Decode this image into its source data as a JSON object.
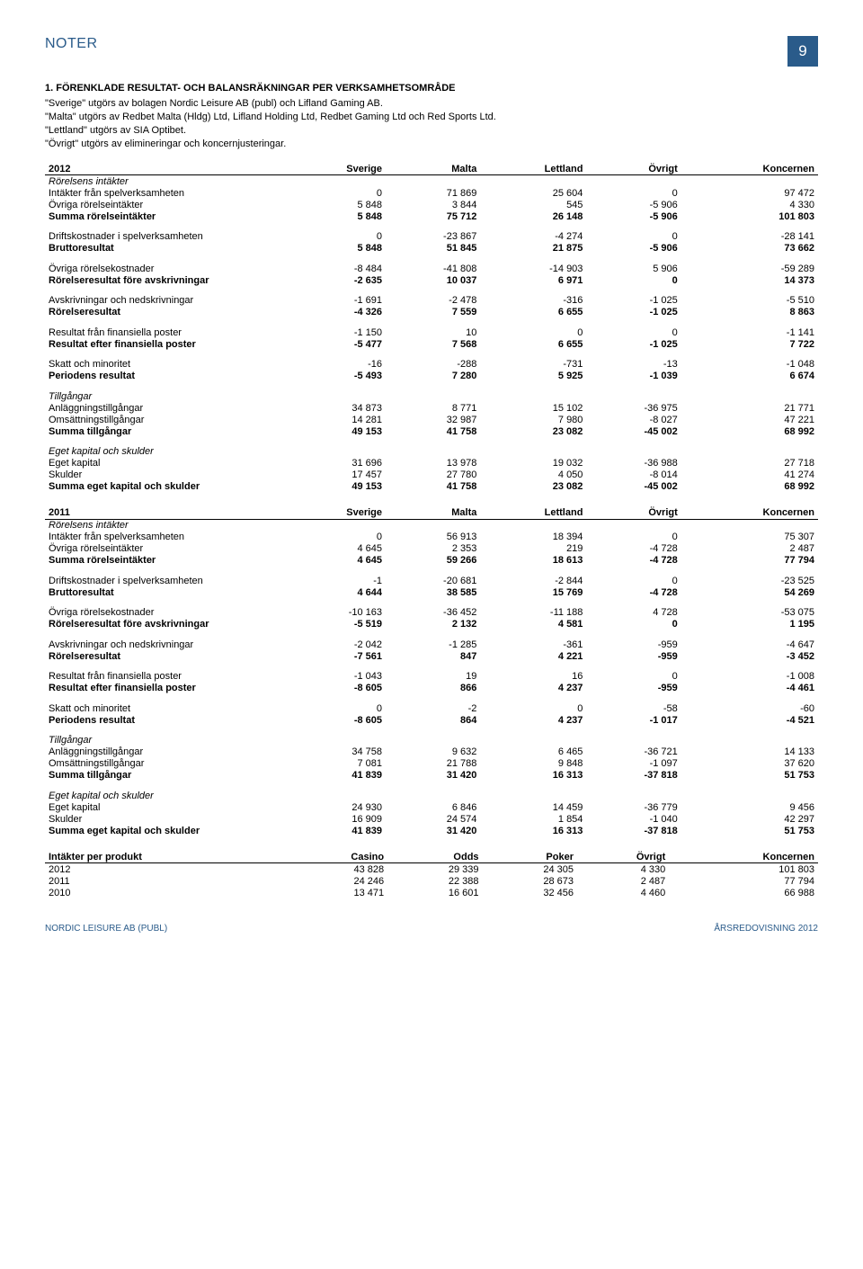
{
  "page": {
    "title": "NOTER",
    "number": "9",
    "footer_left": "NORDIC LEISURE AB (PUBL)",
    "footer_right": "ÅRSREDOVISNING 2012"
  },
  "note": {
    "heading": "1.    FÖRENKLADE RESULTAT- OCH BALANSRÄKNINGAR PER VERKSAMHETSOMRÅDE",
    "intro": "\"Sverige\" utgörs av bolagen Nordic Leisure AB (publ) och Lifland Gaming AB.\n\"Malta\" utgörs av Redbet Malta (Hldg) Ltd, Lifland Holding Ltd, Redbet Gaming Ltd och Red Sports Ltd.\n\"Lettland\" utgörs av SIA Optibet.\n\"Övrigt\" utgörs av elimineringar och koncernjusteringar."
  },
  "tables": [
    {
      "year": "2012",
      "columns": [
        "Sverige",
        "Malta",
        "Lettland",
        "Övrigt",
        "Koncernen"
      ],
      "rows": [
        {
          "label": "Rörelsens intäkter",
          "vals": [
            "",
            "",
            "",
            "",
            ""
          ],
          "italic": true
        },
        {
          "label": "Intäkter från spelverksamheten",
          "vals": [
            "0",
            "71 869",
            "25 604",
            "0",
            "97 472"
          ]
        },
        {
          "label": "Övriga rörelseintäkter",
          "vals": [
            "5 848",
            "3 844",
            "545",
            "-5 906",
            "4 330"
          ]
        },
        {
          "label": "Summa rörelseintäkter",
          "vals": [
            "5 848",
            "75 712",
            "26 148",
            "-5 906",
            "101 803"
          ],
          "bold": true
        },
        {
          "label": "Driftskostnader i spelverksamheten",
          "vals": [
            "0",
            "-23 867",
            "-4 274",
            "0",
            "-28 141"
          ],
          "gap": true
        },
        {
          "label": "Bruttoresultat",
          "vals": [
            "5 848",
            "51 845",
            "21 875",
            "-5 906",
            "73 662"
          ],
          "bold": true
        },
        {
          "label": "Övriga rörelsekostnader",
          "vals": [
            "-8 484",
            "-41 808",
            "-14 903",
            "5 906",
            "-59 289"
          ],
          "gap": true
        },
        {
          "label": "Rörelseresultat före avskrivningar",
          "vals": [
            "-2 635",
            "10 037",
            "6 971",
            "0",
            "14 373"
          ],
          "bold": true
        },
        {
          "label": "Avskrivningar och nedskrivningar",
          "vals": [
            "-1 691",
            "-2 478",
            "-316",
            "-1 025",
            "-5 510"
          ],
          "gap": true
        },
        {
          "label": "Rörelseresultat",
          "vals": [
            "-4 326",
            "7 559",
            "6 655",
            "-1 025",
            "8 863"
          ],
          "bold": true
        },
        {
          "label": "Resultat från finansiella poster",
          "vals": [
            "-1 150",
            "10",
            "0",
            "0",
            "-1 141"
          ],
          "gap": true
        },
        {
          "label": "Resultat efter finansiella poster",
          "vals": [
            "-5 477",
            "7 568",
            "6 655",
            "-1 025",
            "7 722"
          ],
          "bold": true
        },
        {
          "label": "Skatt och minoritet",
          "vals": [
            "-16",
            "-288",
            "-731",
            "-13",
            "-1 048"
          ],
          "gap": true
        },
        {
          "label": "Periodens resultat",
          "vals": [
            "-5 493",
            "7 280",
            "5 925",
            "-1 039",
            "6 674"
          ],
          "bold": true
        },
        {
          "label": "Tillgångar",
          "vals": [
            "",
            "",
            "",
            "",
            ""
          ],
          "italic": true,
          "gap": true
        },
        {
          "label": "Anläggningstillgångar",
          "vals": [
            "34 873",
            "8 771",
            "15 102",
            "-36 975",
            "21 771"
          ]
        },
        {
          "label": "Omsättningstillgångar",
          "vals": [
            "14 281",
            "32 987",
            "7 980",
            "-8 027",
            "47 221"
          ]
        },
        {
          "label": "Summa tillgångar",
          "vals": [
            "49 153",
            "41 758",
            "23 082",
            "-45 002",
            "68 992"
          ],
          "bold": true
        },
        {
          "label": "Eget kapital och skulder",
          "vals": [
            "",
            "",
            "",
            "",
            ""
          ],
          "italic": true,
          "gap": true
        },
        {
          "label": "Eget kapital",
          "vals": [
            "31 696",
            "13 978",
            "19 032",
            "-36 988",
            "27 718"
          ]
        },
        {
          "label": "Skulder",
          "vals": [
            "17 457",
            "27 780",
            "4 050",
            "-8 014",
            "41 274"
          ]
        },
        {
          "label": "Summa eget kapital och skulder",
          "vals": [
            "49 153",
            "41 758",
            "23 082",
            "-45 002",
            "68 992"
          ],
          "bold": true
        }
      ]
    },
    {
      "year": "2011",
      "columns": [
        "Sverige",
        "Malta",
        "Lettland",
        "Övrigt",
        "Koncernen"
      ],
      "rows": [
        {
          "label": "Rörelsens intäkter",
          "vals": [
            "",
            "",
            "",
            "",
            ""
          ],
          "italic": true
        },
        {
          "label": "Intäkter från spelverksamheten",
          "vals": [
            "0",
            "56 913",
            "18 394",
            "0",
            "75 307"
          ]
        },
        {
          "label": "Övriga rörelseintäkter",
          "vals": [
            "4 645",
            "2 353",
            "219",
            "-4 728",
            "2 487"
          ]
        },
        {
          "label": "Summa rörelseintäkter",
          "vals": [
            "4 645",
            "59 266",
            "18 613",
            "-4 728",
            "77 794"
          ],
          "bold": true
        },
        {
          "label": "Driftskostnader i spelverksamheten",
          "vals": [
            "-1",
            "-20 681",
            "-2 844",
            "0",
            "-23 525"
          ],
          "gap": true
        },
        {
          "label": "Bruttoresultat",
          "vals": [
            "4 644",
            "38 585",
            "15 769",
            "-4 728",
            "54 269"
          ],
          "bold": true
        },
        {
          "label": "Övriga rörelsekostnader",
          "vals": [
            "-10 163",
            "-36 452",
            "-11 188",
            "4 728",
            "-53 075"
          ],
          "gap": true
        },
        {
          "label": "Rörelseresultat före avskrivningar",
          "vals": [
            "-5 519",
            "2 132",
            "4 581",
            "0",
            "1 195"
          ],
          "bold": true
        },
        {
          "label": "Avskrivningar och nedskrivningar",
          "vals": [
            "-2 042",
            "-1 285",
            "-361",
            "-959",
            "-4 647"
          ],
          "gap": true
        },
        {
          "label": "Rörelseresultat",
          "vals": [
            "-7 561",
            "847",
            "4 221",
            "-959",
            "-3 452"
          ],
          "bold": true
        },
        {
          "label": "Resultat från finansiella poster",
          "vals": [
            "-1 043",
            "19",
            "16",
            "0",
            "-1 008"
          ],
          "gap": true
        },
        {
          "label": "Resultat efter finansiella poster",
          "vals": [
            "-8 605",
            "866",
            "4 237",
            "-959",
            "-4 461"
          ],
          "bold": true
        },
        {
          "label": "Skatt och minoritet",
          "vals": [
            "0",
            "-2",
            "0",
            "-58",
            "-60"
          ],
          "gap": true
        },
        {
          "label": "Periodens resultat",
          "vals": [
            "-8 605",
            "864",
            "4 237",
            "-1 017",
            "-4 521"
          ],
          "bold": true
        },
        {
          "label": "Tillgångar",
          "vals": [
            "",
            "",
            "",
            "",
            ""
          ],
          "italic": true,
          "gap": true
        },
        {
          "label": "Anläggningstillgångar",
          "vals": [
            "34 758",
            "9 632",
            "6 465",
            "-36 721",
            "14 133"
          ]
        },
        {
          "label": "Omsättningstillgångar",
          "vals": [
            "7 081",
            "21 788",
            "9 848",
            "-1 097",
            "37 620"
          ]
        },
        {
          "label": "Summa tillgångar",
          "vals": [
            "41 839",
            "31 420",
            "16 313",
            "-37 818",
            "51 753"
          ],
          "bold": true
        },
        {
          "label": "Eget kapital och skulder",
          "vals": [
            "",
            "",
            "",
            "",
            ""
          ],
          "italic": true,
          "gap": true
        },
        {
          "label": "Eget kapital",
          "vals": [
            "24 930",
            "6 846",
            "14 459",
            "-36 779",
            "9 456"
          ]
        },
        {
          "label": "Skulder",
          "vals": [
            "16 909",
            "24 574",
            "1 854",
            "-1 040",
            "42 297"
          ]
        },
        {
          "label": "Summa eget kapital och skulder",
          "vals": [
            "41 839",
            "31 420",
            "16 313",
            "-37 818",
            "51 753"
          ],
          "bold": true
        }
      ]
    },
    {
      "year": "Intäkter per produkt",
      "columns": [
        "Casino",
        "Odds",
        "Poker",
        "Övrigt",
        "Koncernen"
      ],
      "rows": [
        {
          "label": "2012",
          "vals": [
            "43 828",
            "29 339",
            "24 305",
            "4 330",
            "101 803"
          ]
        },
        {
          "label": "2011",
          "vals": [
            "24 246",
            "22 388",
            "28 673",
            "2 487",
            "77 794"
          ]
        },
        {
          "label": "2010",
          "vals": [
            "13 471",
            "16 601",
            "32 456",
            "4 460",
            "66 988"
          ]
        }
      ]
    }
  ]
}
